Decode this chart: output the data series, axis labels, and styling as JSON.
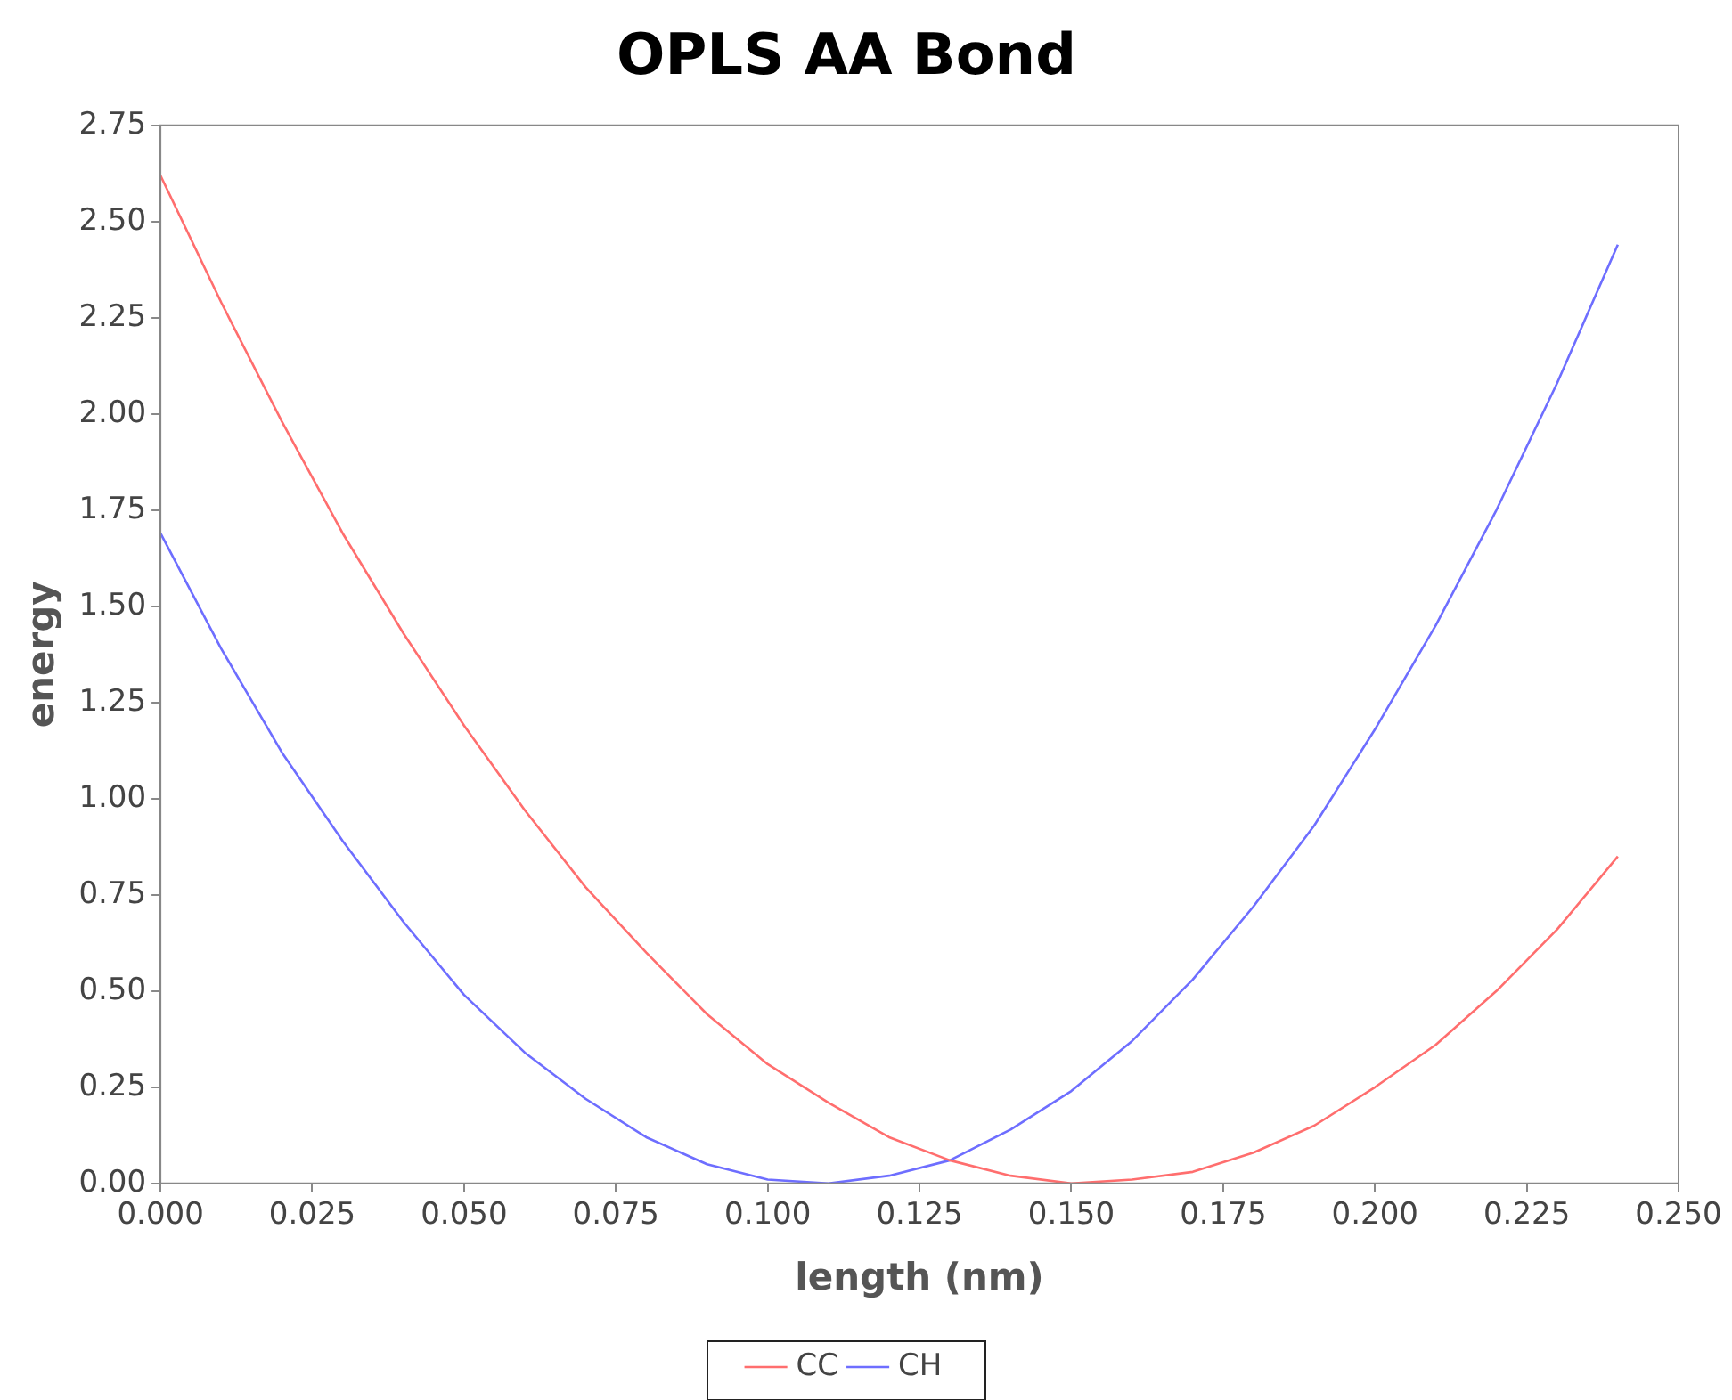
{
  "chart_data": {
    "type": "line",
    "title": "OPLS AA Bond",
    "xlabel": "length (nm)",
    "ylabel": "energy",
    "x": [
      0,
      0.01,
      0.02,
      0.03,
      0.04,
      0.05,
      0.06,
      0.07,
      0.08,
      0.09,
      0.1,
      0.11,
      0.12,
      0.13,
      0.14,
      0.15,
      0.16,
      0.17,
      0.18,
      0.19,
      0.2,
      0.21,
      0.22,
      0.23,
      0.24
    ],
    "series": [
      {
        "name": "CC",
        "color": "#ff6e6e",
        "values": [
          2.62,
          2.29,
          1.98,
          1.69,
          1.43,
          1.19,
          0.97,
          0.77,
          0.6,
          0.44,
          0.31,
          0.21,
          0.12,
          0.06,
          0.02,
          0.0,
          0.01,
          0.03,
          0.08,
          0.15,
          0.25,
          0.36,
          0.5,
          0.66,
          0.85
        ]
      },
      {
        "name": "CH",
        "color": "#6e6eff",
        "values": [
          1.69,
          1.39,
          1.12,
          0.89,
          0.68,
          0.49,
          0.34,
          0.22,
          0.12,
          0.05,
          0.01,
          0.0,
          0.02,
          0.06,
          0.14,
          0.24,
          0.37,
          0.53,
          0.72,
          0.93,
          1.18,
          1.45,
          1.75,
          2.08,
          2.44
        ]
      }
    ],
    "xlim": [
      0,
      0.25
    ],
    "xticks": [
      {
        "value": 0,
        "label": "0.000"
      },
      {
        "value": 0.025,
        "label": "0.025"
      },
      {
        "value": 0.05,
        "label": "0.050"
      },
      {
        "value": 0.075,
        "label": "0.075"
      },
      {
        "value": 0.1,
        "label": "0.100"
      },
      {
        "value": 0.125,
        "label": "0.125"
      },
      {
        "value": 0.15,
        "label": "0.150"
      },
      {
        "value": 0.175,
        "label": "0.175"
      },
      {
        "value": 0.2,
        "label": "0.200"
      },
      {
        "value": 0.225,
        "label": "0.225"
      },
      {
        "value": 0.25,
        "label": "0.250"
      }
    ],
    "ylim": [
      0,
      2.75
    ],
    "yticks": [
      {
        "value": 0,
        "label": "0.00"
      },
      {
        "value": 0.25,
        "label": "0.25"
      },
      {
        "value": 0.5,
        "label": "0.50"
      },
      {
        "value": 0.75,
        "label": "0.75"
      },
      {
        "value": 1,
        "label": "1.00"
      },
      {
        "value": 1.25,
        "label": "1.25"
      },
      {
        "value": 1.5,
        "label": "1.50"
      },
      {
        "value": 1.75,
        "label": "1.75"
      },
      {
        "value": 2,
        "label": "2.00"
      },
      {
        "value": 2.25,
        "label": "2.25"
      },
      {
        "value": 2.5,
        "label": "2.50"
      },
      {
        "value": 2.75,
        "label": "2.75"
      }
    ],
    "grid": false,
    "legend": "bottom",
    "marker": "none",
    "line_style": "solid"
  }
}
